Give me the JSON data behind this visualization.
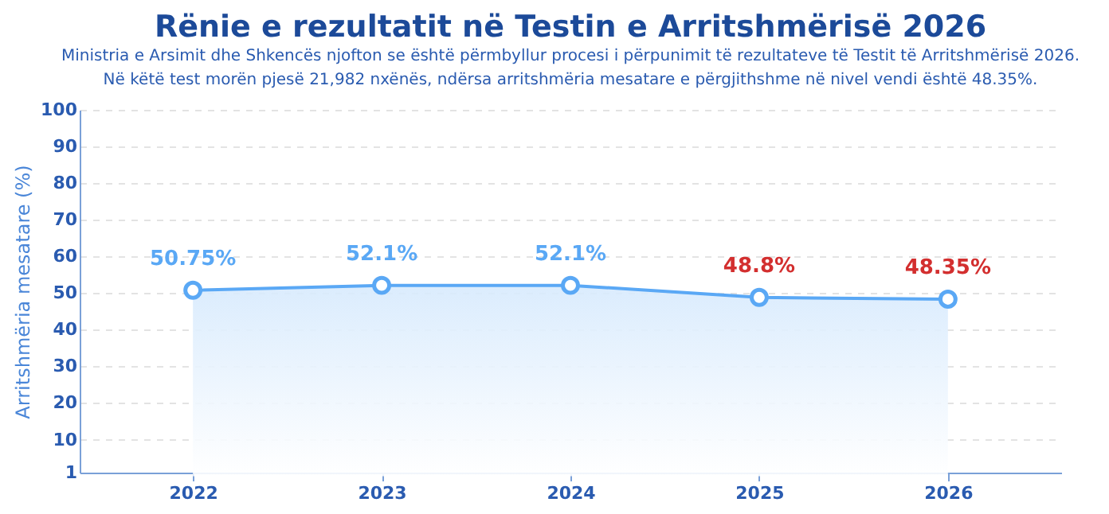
{
  "chart_data": {
    "type": "area",
    "title": "Rënie e rezultatit në Testin e Arritshmërisë 2026",
    "subtitle": [
      "Ministria e Arsimit dhe Shkencës njofton se është përmbyllur procesi i përpunimit të rezultateve të Testit të Arritshmërisë 2026.",
      "Në këtë test morën pjesë 21,982 nxënës, ndërsa arritshmëria mesatare e përgjithshme në nivel vendi është 48.35%."
    ],
    "ylabel": "Arritshmëria mesatare (%)",
    "categories": [
      "2022",
      "2023",
      "2024",
      "2025",
      "2026"
    ],
    "series": [
      {
        "color": "#5aa8f5",
        "values": [
          50.75,
          52.1,
          52.1,
          48.8,
          48.35
        ],
        "value_labels": [
          "50.75%",
          "52.1%",
          "52.1%",
          "48.8%",
          "48.35%"
        ]
      }
    ],
    "ylim": [
      1,
      100
    ],
    "yticks": [
      1,
      10,
      20,
      30,
      40,
      50,
      60,
      70,
      80,
      90,
      100
    ],
    "grid": "y",
    "marker": "circle"
  }
}
